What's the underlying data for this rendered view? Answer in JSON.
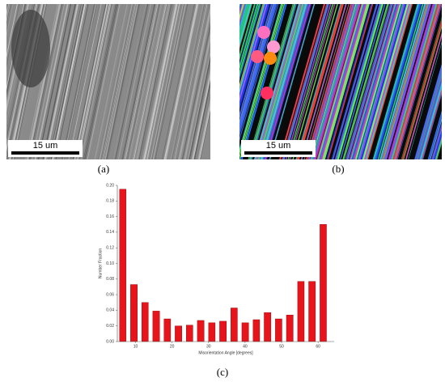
{
  "panels": {
    "a": {
      "label": "(a)",
      "scale": "15 um"
    },
    "b": {
      "label": "(b)",
      "scale": "15 um"
    },
    "c": {
      "label": "(c)"
    }
  },
  "chart_data": {
    "type": "histogram",
    "bins": [
      5.0,
      8.0,
      11.1,
      14.1,
      17.2,
      20.2,
      23.3,
      26.3,
      29.4,
      32.4,
      35.5,
      38.5,
      41.6,
      44.6,
      47.7,
      50.7,
      53.8,
      56.8,
      59.9,
      62.9
    ],
    "values": [
      0.195,
      0.073,
      0.05,
      0.039,
      0.029,
      0.02,
      0.021,
      0.027,
      0.024,
      0.026,
      0.043,
      0.024,
      0.028,
      0.037,
      0.029,
      0.034,
      0.077,
      0.077,
      0.15
    ],
    "color": "#e8141b",
    "x_label": "Misorientation Angle [degrees]",
    "y_label": "Number Fraction",
    "xlim": [
      5,
      64.4
    ],
    "ylim": [
      0,
      0.2
    ],
    "xticks": [
      10,
      20,
      30,
      40,
      50,
      60
    ],
    "yticks": [
      {
        "value": 0,
        "label": "0.00"
      },
      {
        "value": 0.02,
        "label": "0.02"
      },
      {
        "value": 0.04,
        "label": "0.04"
      },
      {
        "value": 0.06,
        "label": "0.06"
      },
      {
        "value": 0.08,
        "label": "0.08"
      },
      {
        "value": 0.1,
        "label": "0.10"
      },
      {
        "value": 0.12,
        "label": "0.12"
      },
      {
        "value": 0.14,
        "label": "0.14"
      },
      {
        "value": 0.16,
        "label": "0.16"
      },
      {
        "value": 0.18,
        "label": "0.18"
      },
      {
        "value": 0.2,
        "label": "0.20"
      }
    ]
  }
}
